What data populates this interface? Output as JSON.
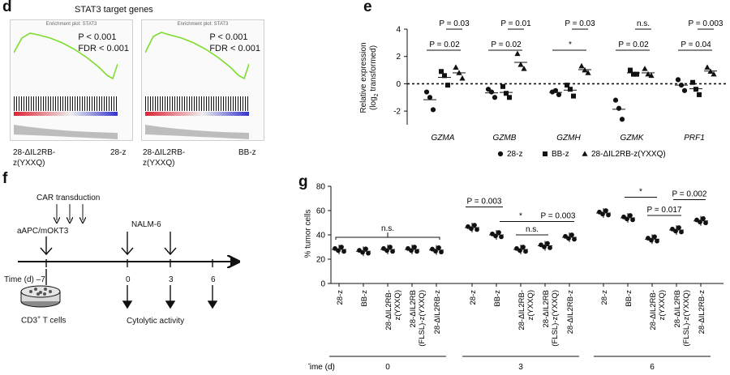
{
  "panel_d": {
    "letter": "d",
    "title": "STAT3 target genes",
    "plot1": {
      "header": "Enrichment plot: STAT3",
      "p": "P < 0.001",
      "fdr": "FDR < 0.001",
      "left_label_1": "28-ΔIL2RB-",
      "left_label_2": "z(YXXQ)",
      "right_label": "28-z"
    },
    "plot2": {
      "header": "Enrichment plot: STAT3",
      "p": "P < 0.001",
      "fdr": "FDR < 0.001",
      "left_label_1": "28-ΔIL2RB-",
      "left_label_2": "z(YXXQ)",
      "right_label": "BB-z"
    }
  },
  "panel_e": {
    "letter": "e",
    "ylabel_1": "Relative expression",
    "ylabel_2": "(log",
    "ylabel_sub": "2",
    "ylabel_3": " transformed)",
    "legend": [
      "28-z",
      "BB-z",
      "28-ΔIL2RB-z(YXXQ)"
    ],
    "chart_data": {
      "type": "scatter",
      "ylim": [
        -3,
        4
      ],
      "yticks": [
        -2,
        0,
        2,
        4
      ],
      "groups": [
        "GZMA",
        "GZMB",
        "GZMH",
        "GZMK",
        "PRF1"
      ],
      "series": [
        {
          "name": "28-z",
          "marker": "circle",
          "values": [
            [
              -0.6,
              -1.0,
              -1.9
            ],
            [
              -0.4,
              -0.6,
              -1.0
            ],
            [
              -0.6,
              -0.5,
              -0.8
            ],
            [
              -1.2,
              -1.8,
              -2.6
            ],
            [
              0.3,
              -0.1,
              -0.5
            ]
          ]
        },
        {
          "name": "BB-z",
          "marker": "square",
          "values": [
            [
              0.9,
              0.6,
              -0.1
            ],
            [
              -0.2,
              -0.7,
              -1.0
            ],
            [
              -0.1,
              -0.4,
              -0.9
            ],
            [
              1.0,
              0.7,
              0.7
            ],
            [
              0.1,
              -0.4,
              -0.8
            ]
          ]
        },
        {
          "name": "28-ΔIL2RB-z(YXXQ)",
          "marker": "triangle",
          "values": [
            [
              1.2,
              0.8,
              0.4
            ],
            [
              2.2,
              1.4,
              1.1
            ],
            [
              1.3,
              1.0,
              0.8
            ],
            [
              1.1,
              0.7,
              0.6
            ],
            [
              1.2,
              0.9,
              0.7
            ]
          ]
        }
      ],
      "annotations": [
        {
          "group": "GZMA",
          "text": "P = 0.03"
        },
        {
          "group": "GZMA",
          "text": "P = 0.02"
        },
        {
          "group": "GZMB",
          "text": "P = 0.01"
        },
        {
          "group": "GZMB",
          "text": "P = 0.02"
        },
        {
          "group": "GZMH",
          "text": "P = 0.03"
        },
        {
          "group": "GZMH",
          "text": "*"
        },
        {
          "group": "GZMK",
          "text": "n.s."
        },
        {
          "group": "GZMK",
          "text": "P = 0.02"
        },
        {
          "group": "PRF1",
          "text": "P = 0.003"
        },
        {
          "group": "PRF1",
          "text": "P = 0.04"
        }
      ]
    }
  },
  "panel_f": {
    "letter": "f",
    "car_transduction": "CAR transduction",
    "aapc": "aAPC/mOKT3",
    "nalm": "NALM-6",
    "time_label": "Time (d) –7",
    "ticks": [
      "0",
      "3",
      "6"
    ],
    "cd3_1": "CD3",
    "cd3_sup": "+",
    "cd3_2": " T cells",
    "cytolytic": "Cytolytic activity"
  },
  "panel_g": {
    "letter": "g",
    "ylabel": "% tumor cells",
    "time_label": "Time (d)",
    "chart_data": {
      "type": "scatter",
      "ylim": [
        0,
        80
      ],
      "yticks": [
        0,
        20,
        40,
        60,
        80
      ],
      "timepoints": [
        "0",
        "3",
        "6"
      ],
      "categories": [
        "28-z",
        "BB-z",
        "28-ΔIL2RB-z(YXXQ)",
        "28-ΔIL2RB (FLSL)-z(YXXQ)",
        "28-ΔIL2RB-z"
      ],
      "tick_labels": [
        [
          "28-z"
        ],
        [
          "BB-z"
        ],
        [
          "28-ΔIL2RB-",
          "z(YXXQ)"
        ],
        [
          "28-ΔIL2RB",
          "(FLSL)-z(YXXQ)"
        ],
        [
          "28-ΔIL2RB-z"
        ]
      ],
      "means": [
        [
          28,
          26.5,
          28,
          28,
          27.5
        ],
        [
          46,
          40,
          28,
          31,
          38
        ],
        [
          58,
          54,
          36.5,
          44,
          51.5
        ]
      ],
      "annotations": [
        {
          "timepoint": "0",
          "text": "n.s."
        },
        {
          "timepoint": "3",
          "text": "P = 0.003"
        },
        {
          "timepoint": "3",
          "text": "*"
        },
        {
          "timepoint": "3",
          "text": "P = 0.003"
        },
        {
          "timepoint": "3",
          "text": "n.s."
        },
        {
          "timepoint": "6",
          "text": "*"
        },
        {
          "timepoint": "6",
          "text": "P = 0.002"
        },
        {
          "timepoint": "6",
          "text": "P = 0.017"
        }
      ]
    }
  }
}
